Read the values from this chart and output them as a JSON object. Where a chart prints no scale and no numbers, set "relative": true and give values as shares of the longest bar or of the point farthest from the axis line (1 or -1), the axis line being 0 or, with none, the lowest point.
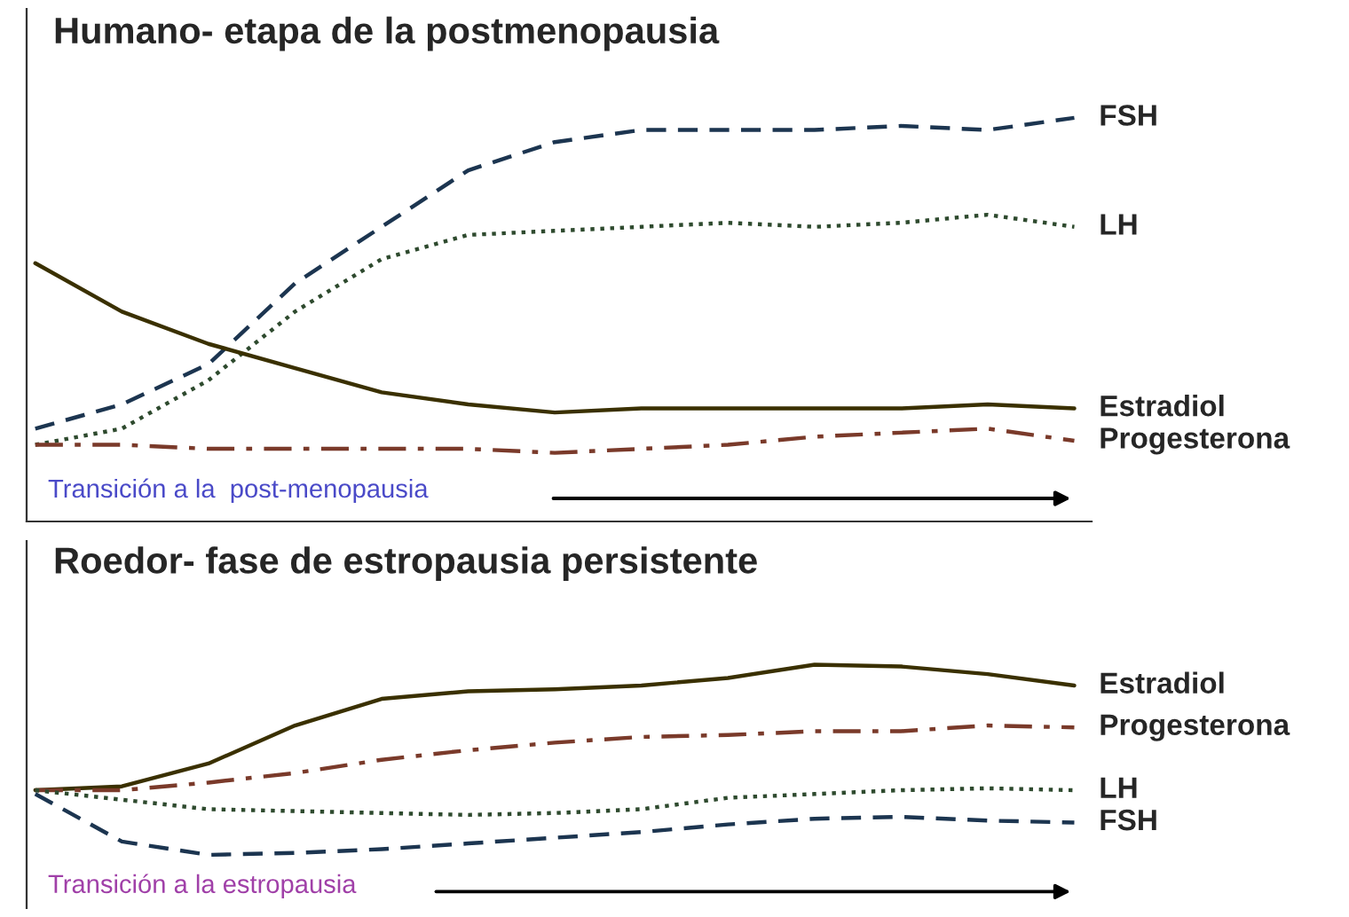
{
  "chart_data": [
    {
      "type": "line",
      "title": "Humano- etapa de la postmenopausia",
      "relative": true,
      "categories": [
        null,
        null,
        null,
        null,
        null,
        null,
        null,
        null,
        null,
        null,
        null,
        null,
        null
      ],
      "series": [
        {
          "name": "FSH",
          "color": "#1c3550",
          "line_style": "dashed",
          "values": [
            0.23,
            0.29,
            0.39,
            0.59,
            0.73,
            0.87,
            0.94,
            0.97,
            0.97,
            0.97,
            0.98,
            0.97,
            1
          ]
        },
        {
          "name": "LH",
          "color": "#2e4a2e",
          "line_style": "dotted",
          "values": [
            0.19,
            0.23,
            0.35,
            0.52,
            0.65,
            0.71,
            0.72,
            0.73,
            0.74,
            0.73,
            0.74,
            0.76,
            0.73
          ]
        },
        {
          "name": "Estradiol",
          "color": "#3a3000",
          "line_style": "solid",
          "values": [
            0.64,
            0.52,
            0.44,
            0.38,
            0.32,
            0.29,
            0.27,
            0.28,
            0.28,
            0.28,
            0.28,
            0.29,
            0.28
          ]
        },
        {
          "name": "Progesterona",
          "color": "#7a3a2a",
          "line_style": "dashdot",
          "values": [
            0.19,
            0.19,
            0.18,
            0.18,
            0.18,
            0.18,
            0.17,
            0.18,
            0.19,
            0.21,
            0.22,
            0.23,
            0.2
          ]
        }
      ],
      "annotations": [
        "Transición a la  post-menopausia"
      ],
      "grid": false,
      "legend": false
    },
    {
      "type": "line",
      "title": "Roedor- fase de estropausia persistente",
      "relative": true,
      "categories": [
        null,
        null,
        null,
        null,
        null,
        null,
        null,
        null,
        null,
        null,
        null,
        null,
        null
      ],
      "series": [
        {
          "name": "Estradiol",
          "color": "#3a3000",
          "line_style": "solid",
          "values": [
            0.34,
            0.36,
            0.48,
            0.68,
            0.82,
            0.86,
            0.87,
            0.89,
            0.93,
            1,
            0.99,
            0.95,
            0.89
          ]
        },
        {
          "name": "Progesterona",
          "color": "#7a3a2a",
          "line_style": "dashdot",
          "values": [
            0.34,
            0.34,
            0.38,
            0.43,
            0.5,
            0.55,
            0.59,
            0.62,
            0.63,
            0.65,
            0.65,
            0.68,
            0.67
          ]
        },
        {
          "name": "LH",
          "color": "#2e4a2e",
          "line_style": "dotted",
          "values": [
            0.34,
            0.29,
            0.24,
            0.23,
            0.22,
            0.21,
            0.22,
            0.24,
            0.3,
            0.32,
            0.34,
            0.35,
            0.34
          ]
        },
        {
          "name": "FSH",
          "color": "#1c3550",
          "line_style": "dashed",
          "values": [
            0.32,
            0.07,
            0,
            0.01,
            0.03,
            0.06,
            0.09,
            0.12,
            0.16,
            0.19,
            0.2,
            0.18,
            0.17
          ]
        }
      ],
      "annotations": [
        "Transición a la estropausia"
      ],
      "grid": false,
      "legend": false
    }
  ]
}
